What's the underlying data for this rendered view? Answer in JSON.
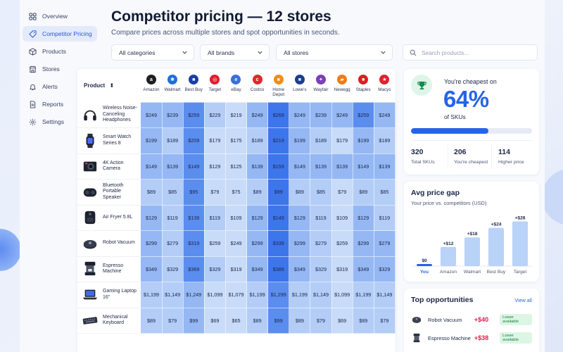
{
  "sidebar": {
    "items": [
      {
        "label": "Overview",
        "icon": "grid-icon"
      },
      {
        "label": "Competitor Pricing",
        "icon": "tag-icon",
        "active": true
      },
      {
        "label": "Products",
        "icon": "box-icon"
      },
      {
        "label": "Stores",
        "icon": "store-icon"
      },
      {
        "label": "Alerts",
        "icon": "bell-icon"
      },
      {
        "label": "Reports",
        "icon": "document-icon"
      },
      {
        "label": "Settings",
        "icon": "gear-icon"
      }
    ]
  },
  "header": {
    "title": "Competitor pricing — 12 stores",
    "subtitle": "Compare prices across multiple stores and spot opportunities in seconds."
  },
  "filters": {
    "categories": "All categories",
    "brands": "All brands",
    "stores": "All stores",
    "search_placeholder": "Search products..."
  },
  "table": {
    "product_header": "Product",
    "stores": [
      {
        "name": "Amazon",
        "logo": "a",
        "color": "#1f1f1f"
      },
      {
        "name": "Walmart",
        "logo": "✱",
        "color": "#1e6fd9"
      },
      {
        "name": "Best Buy",
        "logo": "■",
        "color": "#1b3fa6"
      },
      {
        "name": "Target",
        "logo": "◎",
        "color": "#e11d2e"
      },
      {
        "name": "eBay",
        "logo": "e",
        "color": "#3a70d8"
      },
      {
        "name": "Costco",
        "logo": "c",
        "color": "#e02b2b"
      },
      {
        "name": "Home Depot",
        "logo": "■",
        "color": "#f28c1a"
      },
      {
        "name": "Lowe's",
        "logo": "■",
        "color": "#1d3e8f"
      },
      {
        "name": "Wayfair",
        "logo": "✦",
        "color": "#7b3fb6"
      },
      {
        "name": "Newegg",
        "logo": "▰",
        "color": "#f07b17"
      },
      {
        "name": "Staples",
        "logo": "■",
        "color": "#d92020"
      },
      {
        "name": "Macys",
        "logo": "★",
        "color": "#e0202f"
      }
    ],
    "rows": [
      {
        "name": "Wireless Noise-Canceling Headphones",
        "icon": "headphones-icon",
        "prices": [
          "$249",
          "$239",
          "$259",
          "$229",
          "$219",
          "$249",
          "$269",
          "$249",
          "$239",
          "$249",
          "$259",
          "$249"
        ],
        "shade": [
          3,
          3,
          4,
          2,
          1,
          3,
          5,
          3,
          3,
          3,
          4,
          3
        ]
      },
      {
        "name": "Smart Watch Series 8",
        "icon": "smartwatch-icon",
        "prices": [
          "$199",
          "$189",
          "$209",
          "$179",
          "$175",
          "$189",
          "$219",
          "$199",
          "$189",
          "$179",
          "$199",
          "$189"
        ],
        "shade": [
          3,
          2,
          4,
          1,
          1,
          2,
          5,
          3,
          2,
          1,
          3,
          2
        ]
      },
      {
        "name": "4K Action Camera",
        "icon": "camera-icon",
        "prices": [
          "$149",
          "$139",
          "$149",
          "$129",
          "$125",
          "$139",
          "$159",
          "$149",
          "$139",
          "$139",
          "$149",
          "$139"
        ],
        "shade": [
          3,
          3,
          4,
          1,
          1,
          3,
          5,
          3,
          3,
          3,
          3,
          3
        ]
      },
      {
        "name": "Bluetooth Portable Speaker",
        "icon": "speaker-icon",
        "prices": [
          "$89",
          "$85",
          "$95",
          "$79",
          "$75",
          "$89",
          "$99",
          "$89",
          "$85",
          "$79",
          "$89",
          "$85"
        ],
        "shade": [
          2,
          2,
          4,
          1,
          1,
          2,
          5,
          2,
          2,
          1,
          2,
          2
        ]
      },
      {
        "name": "Air Fryer 5.8L",
        "icon": "air-fryer-icon",
        "prices": [
          "$129",
          "$119",
          "$139",
          "$119",
          "$109",
          "$129",
          "$149",
          "$129",
          "$119",
          "$109",
          "$129",
          "$119"
        ],
        "shade": [
          3,
          2,
          4,
          2,
          1,
          3,
          5,
          3,
          2,
          1,
          3,
          2
        ]
      },
      {
        "name": "Robot Vacuum",
        "icon": "vacuum-icon",
        "prices": [
          "$299",
          "$279",
          "$319",
          "$259",
          "$249",
          "$299",
          "$339",
          "$299",
          "$279",
          "$259",
          "$299",
          "$279"
        ],
        "shade": [
          3,
          2,
          4,
          1,
          1,
          3,
          5,
          3,
          2,
          1,
          3,
          3
        ]
      },
      {
        "name": "Espresso Machine",
        "icon": "espresso-icon",
        "prices": [
          "$349",
          "$329",
          "$369",
          "$329",
          "$319",
          "$349",
          "$389",
          "$349",
          "$329",
          "$319",
          "$349",
          "$329"
        ],
        "shade": [
          3,
          2,
          4,
          2,
          1,
          3,
          5,
          3,
          2,
          1,
          3,
          3
        ]
      },
      {
        "name": "Gaming Laptop 16\"",
        "icon": "laptop-icon",
        "prices": [
          "$1,199",
          "$1,149",
          "$1,249",
          "$1,099",
          "$1,079",
          "$1,199",
          "$1,299",
          "$1,199",
          "$1,149",
          "$1,099",
          "$1,199",
          "$1,149"
        ],
        "shade": [
          2,
          2,
          3,
          1,
          1,
          2,
          4,
          2,
          2,
          1,
          2,
          2
        ]
      },
      {
        "name": "Mechanical Keyboard",
        "icon": "keyboard-icon",
        "prices": [
          "$89",
          "$79",
          "$99",
          "$69",
          "$65",
          "$89",
          "$99",
          "$89",
          "$79",
          "$69",
          "$89",
          "$79"
        ],
        "shade": [
          2,
          2,
          3,
          1,
          1,
          2,
          4,
          2,
          2,
          1,
          2,
          2
        ]
      }
    ]
  },
  "cheapest": {
    "title": "You're cheapest on",
    "value": "64%",
    "unit": "of SKUs",
    "progress": 0.64,
    "stats": [
      {
        "value": "320",
        "label": "Total SKUs"
      },
      {
        "value": "206",
        "label": "You're cheapest"
      },
      {
        "value": "114",
        "label": "Higher price"
      }
    ]
  },
  "avg_gap": {
    "title": "Avg price gap",
    "subtitle": "Your price vs. competitors (USD)"
  },
  "chart_data": {
    "type": "bar",
    "categories": [
      "You",
      "Amazon",
      "Walmart",
      "Best Buy",
      "Target"
    ],
    "values": [
      0,
      12,
      18,
      24,
      28
    ],
    "data_labels": [
      "$0",
      "+$12",
      "+$18",
      "+$24",
      "+$28"
    ],
    "ylim": [
      0,
      30
    ],
    "grid": false,
    "highlight_color": "#2563eb",
    "bar_color": "#b9d2f7"
  },
  "opportunities": {
    "title": "Top opportunities",
    "view_all": "View all",
    "items": [
      {
        "name": "Robot Vacuum",
        "delta": "+$40",
        "badge": "Lower available",
        "icon": "vacuum-icon"
      },
      {
        "name": "Espresso Machine",
        "delta": "+$38",
        "badge": "Lower available",
        "icon": "espresso-icon"
      }
    ]
  },
  "colors": {
    "accent": "#2563eb",
    "positive": "#15803d",
    "negative": "#e11d48",
    "heat": [
      "#eaf1fd",
      "#c8dbf9",
      "#b3cdf7",
      "#95b8f4",
      "#5b8def",
      "#3d76ea"
    ]
  }
}
